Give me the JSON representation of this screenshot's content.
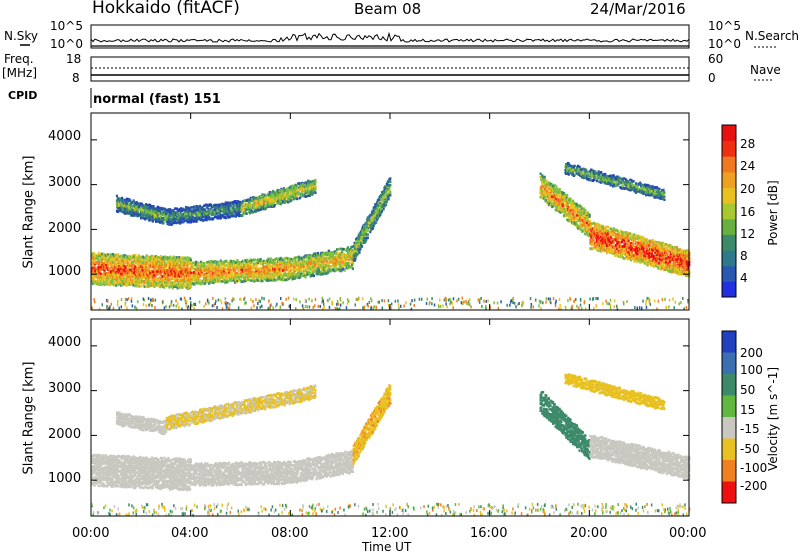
{
  "header": {
    "station": "Hokkaido (fitACF)",
    "beam": "Beam 08",
    "date": "24/Mar/2016"
  },
  "left_labels": {
    "nsky": "N.Sky",
    "freq": "Freq.",
    "freq_unit": "[MHz]",
    "cpid": "CPID"
  },
  "right_labels": {
    "nsearch": "N.Search",
    "nave": "Nave"
  },
  "strip_ticks": {
    "nsky_left_top": "10^5",
    "nsky_left_bottom": "10^0",
    "nsky_right_top": "10^5",
    "nsky_right_bottom": "10^0",
    "freq_top": "18",
    "freq_bottom": "8",
    "nave_top": "60",
    "nave_bottom": "0"
  },
  "cpid_text": "normal (fast) 151",
  "colors": {
    "red": "#ee1010",
    "orange": "#f08020",
    "yellow": "#e8c020",
    "green": "#7cc040",
    "teal": "#3c8a6a",
    "blue": "#2040c0",
    "gray": "#c8c8c0"
  },
  "chart_data": [
    {
      "type": "heatmap",
      "title": "Power",
      "xlabel": "Time UT",
      "ylabel": "Slant Range [km]",
      "x_ticks": [
        "00:00",
        "04:00",
        "08:00",
        "12:00",
        "16:00",
        "20:00",
        "00:00"
      ],
      "y_ticks": [
        1000,
        2000,
        3000,
        4000
      ],
      "ylim": [
        200,
        4600
      ],
      "xlim_hours": [
        0,
        24
      ],
      "colorbar": {
        "label": "Power [dB]",
        "ticks": [
          4,
          8,
          12,
          16,
          20,
          24,
          28
        ],
        "range": [
          0,
          32
        ]
      },
      "bands": [
        {
          "t0": 0,
          "t1": 4,
          "r0": 1150,
          "r1": 1050,
          "w": 700,
          "value": 24
        },
        {
          "t0": 4,
          "t1": 8,
          "r0": 1050,
          "r1": 1150,
          "w": 500,
          "value": 22
        },
        {
          "t0": 8,
          "t1": 10.5,
          "r0": 1150,
          "r1": 1400,
          "w": 500,
          "value": 20
        },
        {
          "t0": 10.5,
          "t1": 12,
          "r0": 1500,
          "r1": 3000,
          "w": 450,
          "value": 16
        },
        {
          "t0": 1,
          "t1": 3,
          "r0": 2600,
          "r1": 2300,
          "w": 350,
          "value": 14
        },
        {
          "t0": 3,
          "t1": 6,
          "r0": 2300,
          "r1": 2500,
          "w": 350,
          "value": 12
        },
        {
          "t0": 6,
          "t1": 9,
          "r0": 2500,
          "r1": 3000,
          "w": 350,
          "value": 18
        },
        {
          "t0": 18,
          "t1": 20,
          "r0": 3000,
          "r1": 2100,
          "w": 550,
          "value": 22
        },
        {
          "t0": 20,
          "t1": 24,
          "r0": 1900,
          "r1": 1250,
          "w": 600,
          "value": 26
        },
        {
          "t0": 19,
          "t1": 23,
          "r0": 3400,
          "r1": 2800,
          "w": 250,
          "value": 14
        }
      ]
    },
    {
      "type": "heatmap",
      "title": "Velocity",
      "xlabel": "Time UT",
      "ylabel": "Slant Range [km]",
      "x_ticks": [
        "00:00",
        "04:00",
        "08:00",
        "12:00",
        "16:00",
        "20:00",
        "00:00"
      ],
      "y_ticks": [
        1000,
        2000,
        3000,
        4000
      ],
      "ylim": [
        200,
        4600
      ],
      "xlim_hours": [
        0,
        24
      ],
      "colorbar": {
        "label": "Velocity [m s^-1]",
        "ticks": [
          200,
          100,
          50,
          15,
          -15,
          -50,
          -100,
          -200
        ],
        "range": [
          -250,
          250
        ]
      },
      "bands": [
        {
          "t0": 0,
          "t1": 4,
          "r0": 1250,
          "r1": 1150,
          "w": 700,
          "value": 0
        },
        {
          "t0": 4,
          "t1": 8,
          "r0": 1150,
          "r1": 1200,
          "w": 500,
          "value": 0
        },
        {
          "t0": 8,
          "t1": 10.5,
          "r0": 1200,
          "r1": 1450,
          "w": 500,
          "value": 0
        },
        {
          "t0": 10.5,
          "t1": 12,
          "r0": 1600,
          "r1": 3000,
          "w": 450,
          "value": -40
        },
        {
          "t0": 1,
          "t1": 3,
          "r0": 2400,
          "r1": 2200,
          "w": 300,
          "value": 0
        },
        {
          "t0": 3,
          "t1": 9,
          "r0": 2300,
          "r1": 3000,
          "w": 300,
          "value": -20
        },
        {
          "t0": 18,
          "t1": 20,
          "r0": 2800,
          "r1": 1700,
          "w": 500,
          "value": 60
        },
        {
          "t0": 20,
          "t1": 24,
          "r0": 1800,
          "r1": 1300,
          "w": 500,
          "value": 0
        },
        {
          "t0": 19,
          "t1": 23,
          "r0": 3300,
          "r1": 2700,
          "w": 250,
          "value": -30
        }
      ]
    }
  ]
}
